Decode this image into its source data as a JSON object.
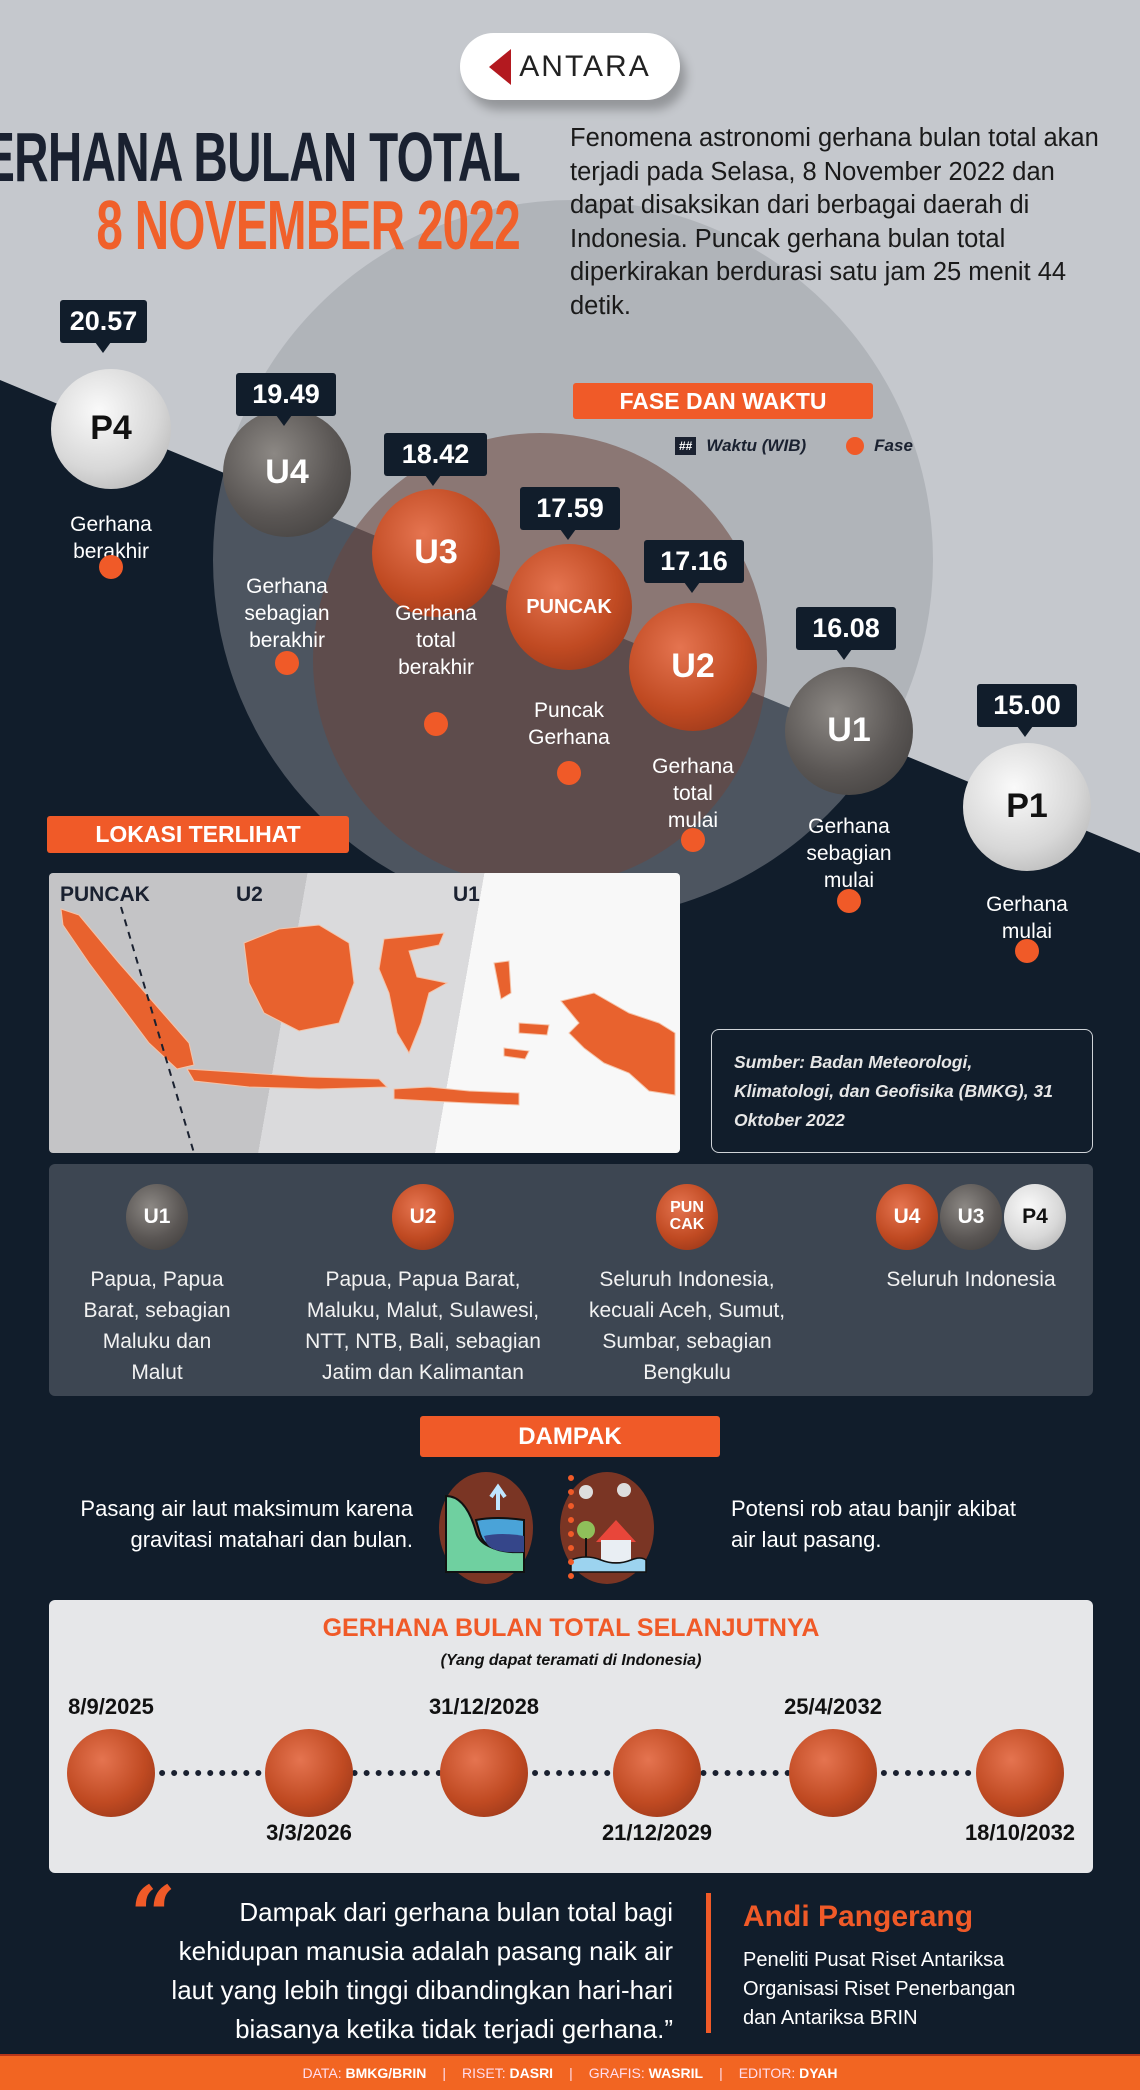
{
  "logo": "ANTARA",
  "title": {
    "line1": "GERHANA BULAN TOTAL",
    "line2": "8 NOVEMBER 2022"
  },
  "intro": "Fenomena astronomi gerhana bulan total akan terjadi pada Selasa, 8 November 2022 dan dapat disaksikan dari berbagai daerah di Indonesia. Puncak gerhana bulan total diperkirakan berdurasi satu jam 25 menit 44 detik.",
  "phase_section": {
    "title": "FASE DAN WAKTU",
    "legend_time_symbol": "##",
    "legend_time": "Waktu (WIB)",
    "legend_phase": "Fase"
  },
  "phases": [
    {
      "code": "P4",
      "time": "20.57",
      "label": "Gerhana\nberakhir",
      "style": "light"
    },
    {
      "code": "U4",
      "time": "19.49",
      "label": "Gerhana\nsebagian\nberakhir",
      "style": "gray"
    },
    {
      "code": "U3",
      "time": "18.42",
      "label": "Gerhana\ntotal\nberakhir",
      "style": "red"
    },
    {
      "code": "PUNCAK",
      "time": "17.59",
      "label": "Puncak\nGerhana",
      "style": "red"
    },
    {
      "code": "U2",
      "time": "17.16",
      "label": "Gerhana\ntotal\nmulai",
      "style": "red"
    },
    {
      "code": "U1",
      "time": "16.08",
      "label": "Gerhana\nsebagian\nmulai",
      "style": "gray"
    },
    {
      "code": "P1",
      "time": "15.00",
      "label": "Gerhana\nmulai",
      "style": "light"
    }
  ],
  "location": {
    "title": "LOKASI TERLIHAT",
    "map_labels": [
      "PUNCAK",
      "U2",
      "U1"
    ]
  },
  "source": "Sumber: Badan Meteorologi, Klimatologi, dan Geofisika (BMKG), 31 Oktober 2022",
  "visibility": [
    {
      "moons": [
        "U1"
      ],
      "text": "Papua, Papua\nBarat, sebagian\nMaluku dan\nMalut"
    },
    {
      "moons": [
        "U2"
      ],
      "text": "Papua, Papua Barat,\nMaluku, Malut, Sulawesi,\nNTT, NTB, Bali, sebagian\nJatim dan Kalimantan"
    },
    {
      "moons": [
        "PUN\nCAK"
      ],
      "text": "Seluruh Indonesia,\nkecuali Aceh, Sumut,\nSumbar, sebagian\nBengkulu"
    },
    {
      "moons": [
        "U4",
        "U3",
        "P4"
      ],
      "text": "Seluruh Indonesia"
    }
  ],
  "impact": {
    "title": "DAMPAK",
    "left": "Pasang air laut maksimum karena\ngravitasi matahari dan bulan.",
    "right": "Potensi rob atau banjir akibat\nair laut pasang.",
    "icons": [
      "rising-tide-icon",
      "flooded-house-icon"
    ]
  },
  "next": {
    "title": "GERHANA BULAN TOTAL SELANJUTNYA",
    "subtitle": "(Yang dapat teramati di Indonesia)",
    "dates": [
      "8/9/2025",
      "3/3/2026",
      "31/12/2028",
      "21/12/2029",
      "25/4/2032",
      "18/10/2032"
    ]
  },
  "quote": {
    "text": "Dampak dari gerhana bulan total bagi kehidupan manusia adalah pasang naik air laut yang lebih tinggi dibandingkan hari-hari biasanya ketika tidak terjadi gerhana.”",
    "author": "Andi Pangerang",
    "role": "Peneliti Pusat Riset Antariksa\nOrganisasi Riset Penerbangan\ndan Antariksa BRIN"
  },
  "footer": [
    {
      "k": "DATA:",
      "v": "BMKG/BRIN"
    },
    {
      "k": "RISET:",
      "v": "DASRI"
    },
    {
      "k": "GRAFIS:",
      "v": "WASRIL"
    },
    {
      "k": "EDITOR:",
      "v": "DYAH"
    }
  ],
  "colors": {
    "accent": "#f05a28",
    "navy": "#111d2b",
    "panel": "#3d4652"
  }
}
